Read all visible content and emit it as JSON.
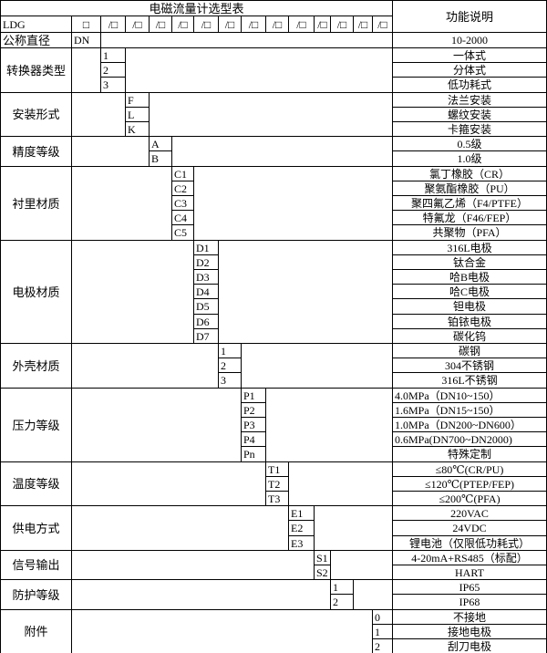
{
  "title": "电磁流量计选型表",
  "function_header": "功能说明",
  "model_row": {
    "prefix": "LDG",
    "boxes": [
      "□",
      "/□",
      "/□",
      "/□",
      "/□",
      "/□",
      "/□",
      "/□",
      "/□",
      "/□",
      "/□",
      "/□",
      "/□",
      "/□"
    ]
  },
  "diameter_row": {
    "label": "公称直径",
    "code": "DN",
    "desc": "10-2000"
  },
  "sections": [
    {
      "label": "转换器类型",
      "codes": [
        "1",
        "2",
        "3"
      ],
      "descs": [
        "一体式",
        "分体式",
        "低功耗式"
      ]
    },
    {
      "label": "安装形式",
      "codes": [
        "F",
        "L",
        "K"
      ],
      "descs": [
        "法兰安装",
        "螺纹安装",
        "卡箍安装"
      ]
    },
    {
      "label": "精度等级",
      "codes": [
        "A",
        "B"
      ],
      "descs": [
        "0.5级",
        "1.0级"
      ]
    },
    {
      "label": "衬里材质",
      "codes": [
        "C1",
        "C2",
        "C3",
        "C4",
        "C5"
      ],
      "descs": [
        "氯丁橡胶（CR）",
        "聚氨酯橡胶（PU）",
        "聚四氟乙烯（F4/PTFE）",
        "特氟龙（F46/FEP）",
        "共聚物（PFA）"
      ]
    },
    {
      "label": "电极材质",
      "codes": [
        "D1",
        "D2",
        "D3",
        "D4",
        "D5",
        "D6",
        "D7"
      ],
      "descs": [
        "316L电极",
        "钛合金",
        "哈B电极",
        "哈C电极",
        "钽电极",
        "铂铱电极",
        "碳化钨"
      ]
    },
    {
      "label": "外壳材质",
      "codes": [
        "1",
        "2",
        "3"
      ],
      "descs": [
        "碳钢",
        "304不锈钢",
        "316L不锈钢"
      ]
    },
    {
      "label": "压力等级",
      "codes": [
        "P1",
        "P2",
        "P3",
        "P4",
        "Pn"
      ],
      "descs": [
        "4.0MPa（DN10~150）",
        "1.6MPa（DN15~150）",
        "1.0MPa（DN200~DN600）",
        "0.6MPa(DN700~DN2000)",
        "特殊定制"
      ]
    },
    {
      "label": "温度等级",
      "codes": [
        "T1",
        "T2",
        "T3"
      ],
      "descs": [
        "≤80℃(CR/PU)",
        "≤120℃(PTEP/FEP)",
        "≤200℃(PFA)"
      ]
    },
    {
      "label": "供电方式",
      "codes": [
        "E1",
        "E2",
        "E3"
      ],
      "descs": [
        "220VAC",
        "24VDC",
        "锂电池（仅限低功耗式）"
      ]
    },
    {
      "label": "信号输出",
      "codes": [
        "S1",
        "S2"
      ],
      "descs": [
        "4-20mA+RS485（标配）",
        "HART"
      ]
    },
    {
      "label": "防护等级",
      "codes": [
        "1",
        "2"
      ],
      "descs": [
        "IP65",
        "IP68"
      ]
    },
    {
      "label": "附件",
      "codes": [
        "0",
        "1",
        "2"
      ],
      "descs": [
        "不接地",
        "接地电极",
        "刮刀电极"
      ]
    }
  ]
}
